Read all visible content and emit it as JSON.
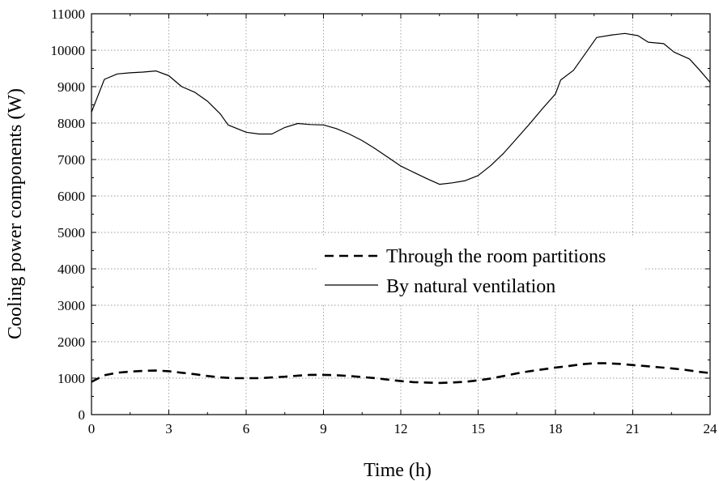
{
  "chart_data": {
    "type": "line",
    "xlabel": "Time (h)",
    "ylabel": "Cooling power components (W)",
    "xlim": [
      0,
      24
    ],
    "ylim": [
      0,
      11000
    ],
    "xticks": [
      0,
      3,
      6,
      9,
      12,
      15,
      18,
      21,
      24
    ],
    "yticks": [
      0,
      1000,
      2000,
      3000,
      4000,
      5000,
      6000,
      7000,
      8000,
      9000,
      10000,
      11000
    ],
    "grid": true,
    "legend_position": "center-right",
    "series": [
      {
        "name": "Through the room partitions",
        "style": "dashed",
        "color": "#000000",
        "points": [
          [
            0,
            900
          ],
          [
            0.5,
            1080
          ],
          [
            1,
            1150
          ],
          [
            1.5,
            1180
          ],
          [
            2,
            1200
          ],
          [
            2.5,
            1210
          ],
          [
            3,
            1190
          ],
          [
            3.5,
            1150
          ],
          [
            4,
            1110
          ],
          [
            4.5,
            1060
          ],
          [
            5,
            1020
          ],
          [
            5.5,
            1000
          ],
          [
            6,
            1000
          ],
          [
            6.5,
            1000
          ],
          [
            7,
            1020
          ],
          [
            7.5,
            1040
          ],
          [
            8,
            1070
          ],
          [
            8.5,
            1090
          ],
          [
            9,
            1090
          ],
          [
            9.5,
            1080
          ],
          [
            10,
            1060
          ],
          [
            10.5,
            1030
          ],
          [
            11,
            1000
          ],
          [
            11.5,
            960
          ],
          [
            12,
            920
          ],
          [
            12.5,
            890
          ],
          [
            13,
            880
          ],
          [
            13.5,
            870
          ],
          [
            14,
            880
          ],
          [
            14.5,
            900
          ],
          [
            15,
            940
          ],
          [
            15.5,
            990
          ],
          [
            16,
            1060
          ],
          [
            16.5,
            1130
          ],
          [
            17,
            1190
          ],
          [
            17.5,
            1240
          ],
          [
            18,
            1290
          ],
          [
            18.5,
            1330
          ],
          [
            19,
            1380
          ],
          [
            19.5,
            1410
          ],
          [
            20,
            1410
          ],
          [
            20.5,
            1390
          ],
          [
            21,
            1360
          ],
          [
            21.5,
            1330
          ],
          [
            22,
            1300
          ],
          [
            22.5,
            1270
          ],
          [
            23,
            1230
          ],
          [
            23.5,
            1180
          ],
          [
            24,
            1140
          ]
        ]
      },
      {
        "name": "By natural ventilation",
        "style": "solid",
        "color": "#000000",
        "points": [
          [
            0,
            8300
          ],
          [
            0.5,
            9200
          ],
          [
            1,
            9350
          ],
          [
            1.5,
            9380
          ],
          [
            2,
            9400
          ],
          [
            2.5,
            9430
          ],
          [
            3,
            9300
          ],
          [
            3.5,
            9000
          ],
          [
            4,
            8850
          ],
          [
            4.5,
            8600
          ],
          [
            5,
            8250
          ],
          [
            5.3,
            7950
          ],
          [
            6,
            7750
          ],
          [
            6.5,
            7700
          ],
          [
            7,
            7700
          ],
          [
            7.5,
            7880
          ],
          [
            8,
            7990
          ],
          [
            8.5,
            7960
          ],
          [
            9,
            7950
          ],
          [
            9.5,
            7850
          ],
          [
            10,
            7700
          ],
          [
            10.5,
            7520
          ],
          [
            11,
            7300
          ],
          [
            11.5,
            7060
          ],
          [
            12,
            6820
          ],
          [
            12.5,
            6650
          ],
          [
            13,
            6480
          ],
          [
            13.5,
            6320
          ],
          [
            14,
            6360
          ],
          [
            14.5,
            6420
          ],
          [
            15,
            6560
          ],
          [
            15.5,
            6840
          ],
          [
            16,
            7180
          ],
          [
            16.5,
            7580
          ],
          [
            17,
            7980
          ],
          [
            17.5,
            8400
          ],
          [
            18,
            8800
          ],
          [
            18.2,
            9180
          ],
          [
            18.7,
            9450
          ],
          [
            19.2,
            9950
          ],
          [
            19.6,
            10350
          ],
          [
            20.2,
            10420
          ],
          [
            20.7,
            10460
          ],
          [
            21.2,
            10400
          ],
          [
            21.6,
            10220
          ],
          [
            22.2,
            10180
          ],
          [
            22.6,
            9950
          ],
          [
            23.2,
            9760
          ],
          [
            23.6,
            9450
          ],
          [
            24,
            9120
          ]
        ]
      }
    ]
  }
}
